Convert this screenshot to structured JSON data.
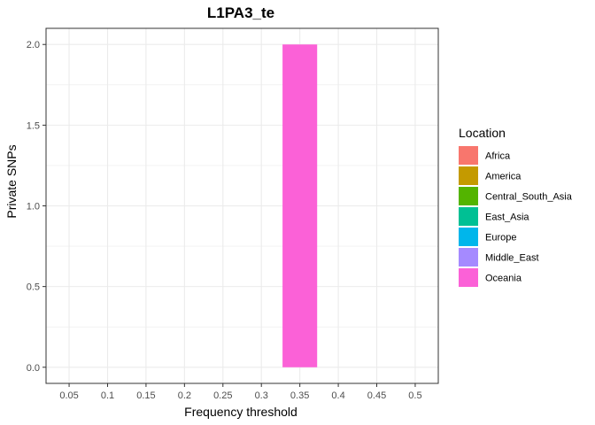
{
  "chart_data": {
    "type": "bar",
    "title": "L1PA3_te",
    "xlabel": "Frequency threshold",
    "ylabel": "Private SNPs",
    "categories": [
      "0.05",
      "0.1",
      "0.15",
      "0.2",
      "0.25",
      "0.3",
      "0.35",
      "0.4",
      "0.45",
      "0.5"
    ],
    "y_ticks": [
      "0.0",
      "0.5",
      "1.0",
      "1.5",
      "2.0"
    ],
    "ylim": [
      -0.1,
      2.1
    ],
    "grid": true,
    "legend": {
      "title": "Location",
      "placement": "right",
      "entries": [
        {
          "name": "Africa",
          "color": "#F8766D"
        },
        {
          "name": "America",
          "color": "#C49A00"
        },
        {
          "name": "Central_South_Asia",
          "color": "#53B400"
        },
        {
          "name": "East_Asia",
          "color": "#00C094"
        },
        {
          "name": "Europe",
          "color": "#00B6EB"
        },
        {
          "name": "Middle_East",
          "color": "#A58AFF"
        },
        {
          "name": "Oceania",
          "color": "#FB61D7"
        }
      ]
    },
    "series": [
      {
        "name": "Oceania",
        "color": "#FB61D7",
        "values": [
          0,
          0,
          0,
          0,
          0,
          0,
          2,
          0,
          0,
          0
        ]
      }
    ]
  }
}
